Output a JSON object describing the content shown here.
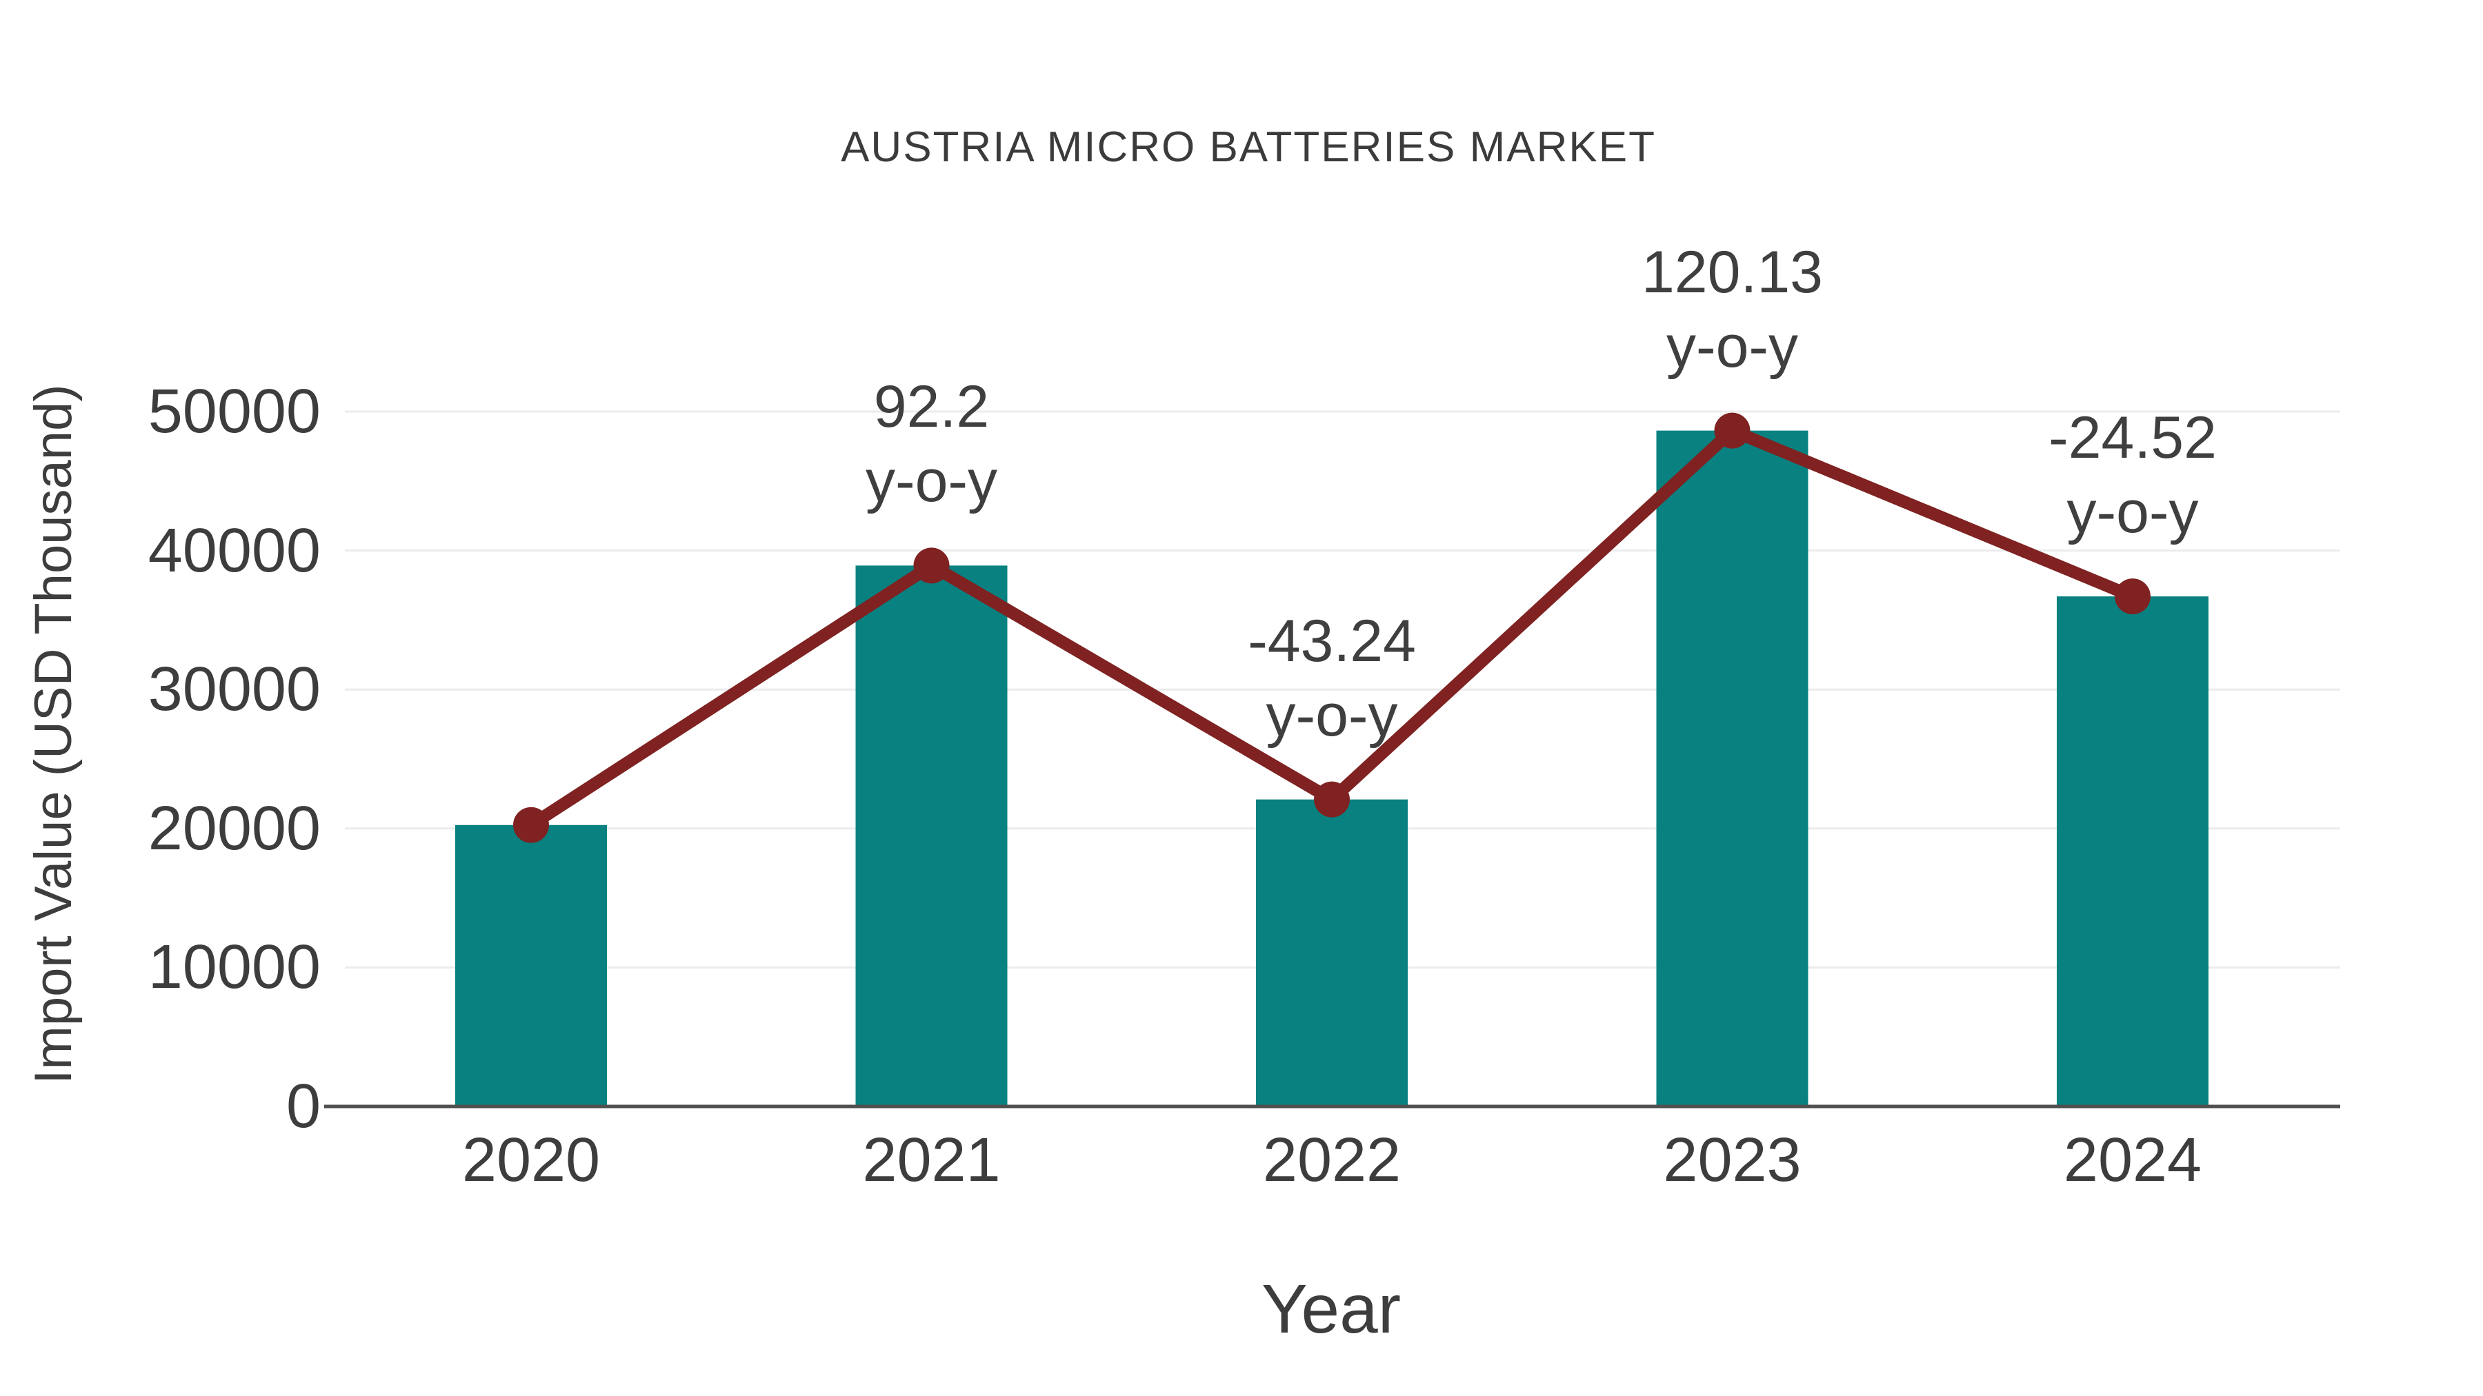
{
  "title": "AUSTRIA MICRO BATTERIES MARKET",
  "axes": {
    "x_label": "Year",
    "y_label": "Import Value (USD Thousand)"
  },
  "chart_data": {
    "type": "bar",
    "title": "AUSTRIA MICRO BATTERIES MARKET",
    "xlabel": "Year",
    "ylabel": "Import Value (USD Thousand)",
    "categories": [
      "2020",
      "2021",
      "2022",
      "2023",
      "2024"
    ],
    "series": [
      {
        "name": "Import Value (USD Thousand)",
        "type": "bar",
        "color": "#088180",
        "values": [
          20250,
          38920,
          22090,
          48630,
          36700
        ]
      },
      {
        "name": "y-o-y change",
        "type": "line",
        "color": "#7f2221",
        "values": [
          20250,
          38920,
          22090,
          48630,
          36700
        ]
      }
    ],
    "annotations": [
      {
        "index": 1,
        "line1": "92.2",
        "line2": "y-o-y"
      },
      {
        "index": 2,
        "line1": "-43.24",
        "line2": "y-o-y"
      },
      {
        "index": 3,
        "line1": "120.13",
        "line2": "y-o-y"
      },
      {
        "index": 4,
        "line1": "-24.52",
        "line2": "y-o-y"
      }
    ],
    "ylim": [
      0,
      50000
    ],
    "yticks": [
      0,
      10000,
      20000,
      30000,
      40000,
      50000
    ],
    "grid": "horizontal",
    "legend": "none",
    "colors": {
      "bar": "#088180",
      "line": "#7f2221",
      "gridline": "#ececec",
      "axis_line": "#4f4f4f",
      "text": "#3d3d3d",
      "background": "#ffffff"
    }
  }
}
